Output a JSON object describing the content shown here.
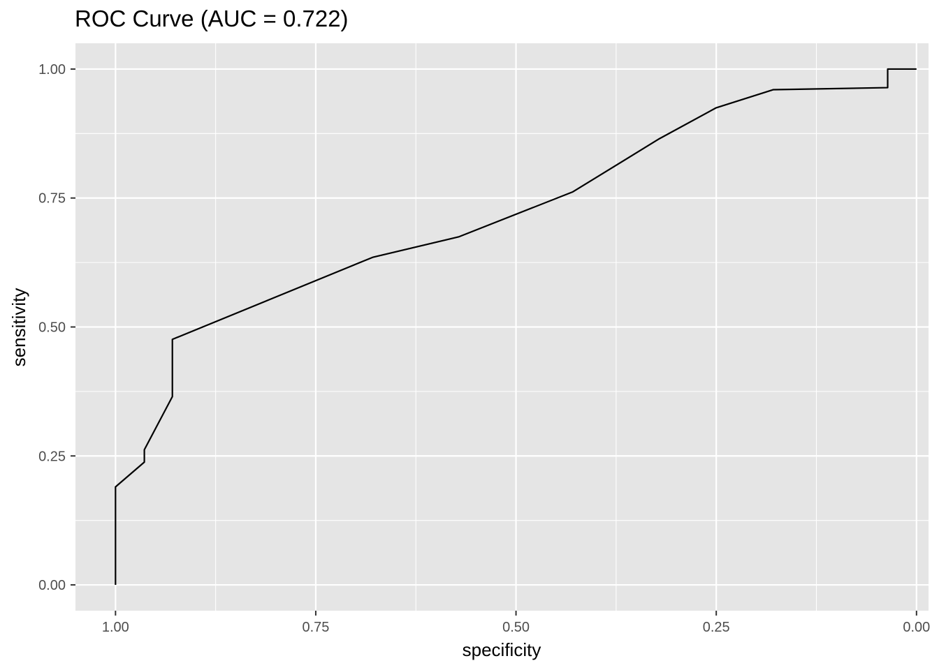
{
  "chart_data": {
    "type": "line",
    "title": "ROC Curve (AUC = 0.722)",
    "xlabel": "specificity",
    "ylabel": "sensitivity",
    "x_reversed": true,
    "xlim": [
      1.05,
      -0.015
    ],
    "ylim": [
      -0.05,
      1.05
    ],
    "x_ticks": [
      1.0,
      0.75,
      0.5,
      0.25,
      0.0
    ],
    "x_tick_labels": [
      "1.00",
      "0.75",
      "0.50",
      "0.25",
      "0.00"
    ],
    "y_ticks": [
      0.0,
      0.25,
      0.5,
      0.75,
      1.0
    ],
    "y_tick_labels": [
      "0.00",
      "0.25",
      "0.50",
      "0.75",
      "1.00"
    ],
    "grid": true,
    "background_color": "#e5e5e5",
    "grid_color": "#ffffff",
    "line_color": "#000000",
    "series": [
      {
        "x": [
          1.0,
          1.0,
          0.964,
          0.964,
          0.929,
          0.929,
          0.679,
          0.571,
          0.429,
          0.321,
          0.25,
          0.179,
          0.036,
          0.036,
          0.0
        ],
        "y": [
          0.0,
          0.19,
          0.238,
          0.262,
          0.365,
          0.476,
          0.635,
          0.675,
          0.762,
          0.865,
          0.925,
          0.96,
          0.964,
          1.0,
          1.0
        ]
      }
    ]
  }
}
